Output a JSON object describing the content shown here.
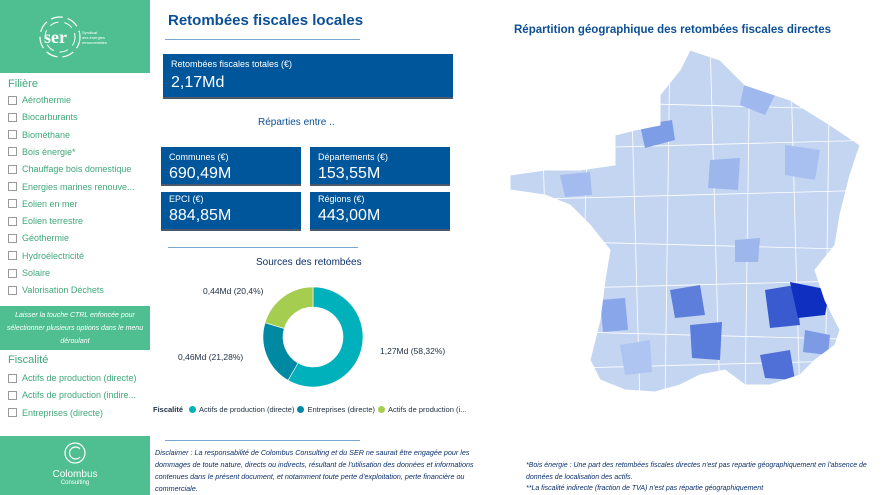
{
  "sidebar": {
    "logo_text": "ser",
    "logo_sub": "Syndicat des énergies renouvelables",
    "filiere_title": "Filière",
    "filiere_items": [
      "Aérothermie",
      "Biocarburants",
      "Biométhane",
      "Bois énergie*",
      "Chauffage bois domestique",
      "Energies marines renouve...",
      "Eolien en mer",
      "Eolien terrestre",
      "Géothermie",
      "Hydroélectricité",
      "Solaire",
      "Valorisation Déchets"
    ],
    "hint": "Laisser la touche CTRL enfoncée pour sélectionner plusieurs options dans le menu déroulant",
    "fiscalite_title": "Fiscalité",
    "fiscalite_items": [
      "Actifs de production (directe)",
      "Actifs de production (indire...",
      "Entreprises (directe)"
    ],
    "bottom_logo": "Colombus",
    "bottom_logo_sub": "Consulting"
  },
  "header": {
    "title": "Retombées fiscales locales"
  },
  "kpis": {
    "total": {
      "label": "Retombées fiscales totales (€)",
      "value": "2,17Md"
    },
    "split_title": "Réparties entre ..",
    "communes": {
      "label": "Communes (€)",
      "value": "690,49M"
    },
    "departements": {
      "label": "Départements (€)",
      "value": "153,55M"
    },
    "epci": {
      "label": "EPCI (€)",
      "value": "884,85M"
    },
    "regions": {
      "label": "Régions (€)",
      "value": "443,00M"
    }
  },
  "chart_data": {
    "type": "pie",
    "title": "Sources des retombées",
    "legend_title": "Fiscalité",
    "slices": [
      {
        "name": "Actifs de production (directe)",
        "value": 1.27,
        "percent": 58.32,
        "label": "1,27Md (58,32%)",
        "color": "#00b0bb"
      },
      {
        "name": "Entreprises (directe)",
        "value": 0.46,
        "percent": 21.28,
        "label": "0,46Md (21,28%)",
        "color": "#0089a3"
      },
      {
        "name": "Actifs de production (i...",
        "value": 0.44,
        "percent": 20.4,
        "label": "0,44Md (20,4%)",
        "color": "#a5cd4f"
      }
    ]
  },
  "disclaimer": "Disclaimer : La responsabilité de Colombus Consulting et du SER ne saurait être engagée pour les dommages de toute nature, directs ou indirects, résultant de l'utilisation des données et informations contenues dans le présent document, et notamment toute perte d'exploitation, perte financière ou commerciale.",
  "map": {
    "title": "Répartition géographique des retombées fiscales directes",
    "note1": "*Bois énergie : Une part des retombées fiscales directes n'est pas repartie géographiquement en l'absence de données de localisation des actifs.",
    "note2": "**La fiscalité indirecte (fraction de TVA) n'est pas répartie géographiquement"
  }
}
